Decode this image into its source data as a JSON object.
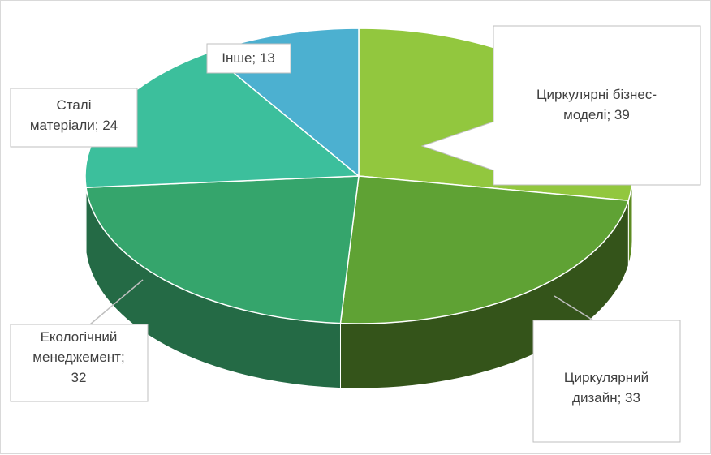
{
  "chart_data": {
    "type": "pie",
    "style": "3d-exploded",
    "categories": [
      "Циркулярні бізнес-моделі",
      "Циркулярний дизайн",
      "Екологічний менеджемент",
      "Сталі матеріали",
      "Інше"
    ],
    "values": [
      39,
      33,
      32,
      24,
      13
    ],
    "colors": [
      "#92c73e",
      "#5fa234",
      "#35a56c",
      "#3cbf9c",
      "#4cb0d0"
    ],
    "side_colors": [
      "#5d8b22",
      "#34541a",
      "#246a45",
      "#2b8a70",
      "#307c95"
    ],
    "labels": [
      {
        "lines": [
          "Циркулярні бізнес-",
          "моделі; 39"
        ]
      },
      {
        "lines": [
          "Циркулярний",
          "дизайн; 33"
        ]
      },
      {
        "lines": [
          "Екологічний",
          "менеджемент;",
          "32"
        ]
      },
      {
        "lines": [
          "Сталі",
          "матеріали; 24"
        ]
      },
      {
        "lines": [
          "Інше; 13"
        ]
      }
    ]
  }
}
